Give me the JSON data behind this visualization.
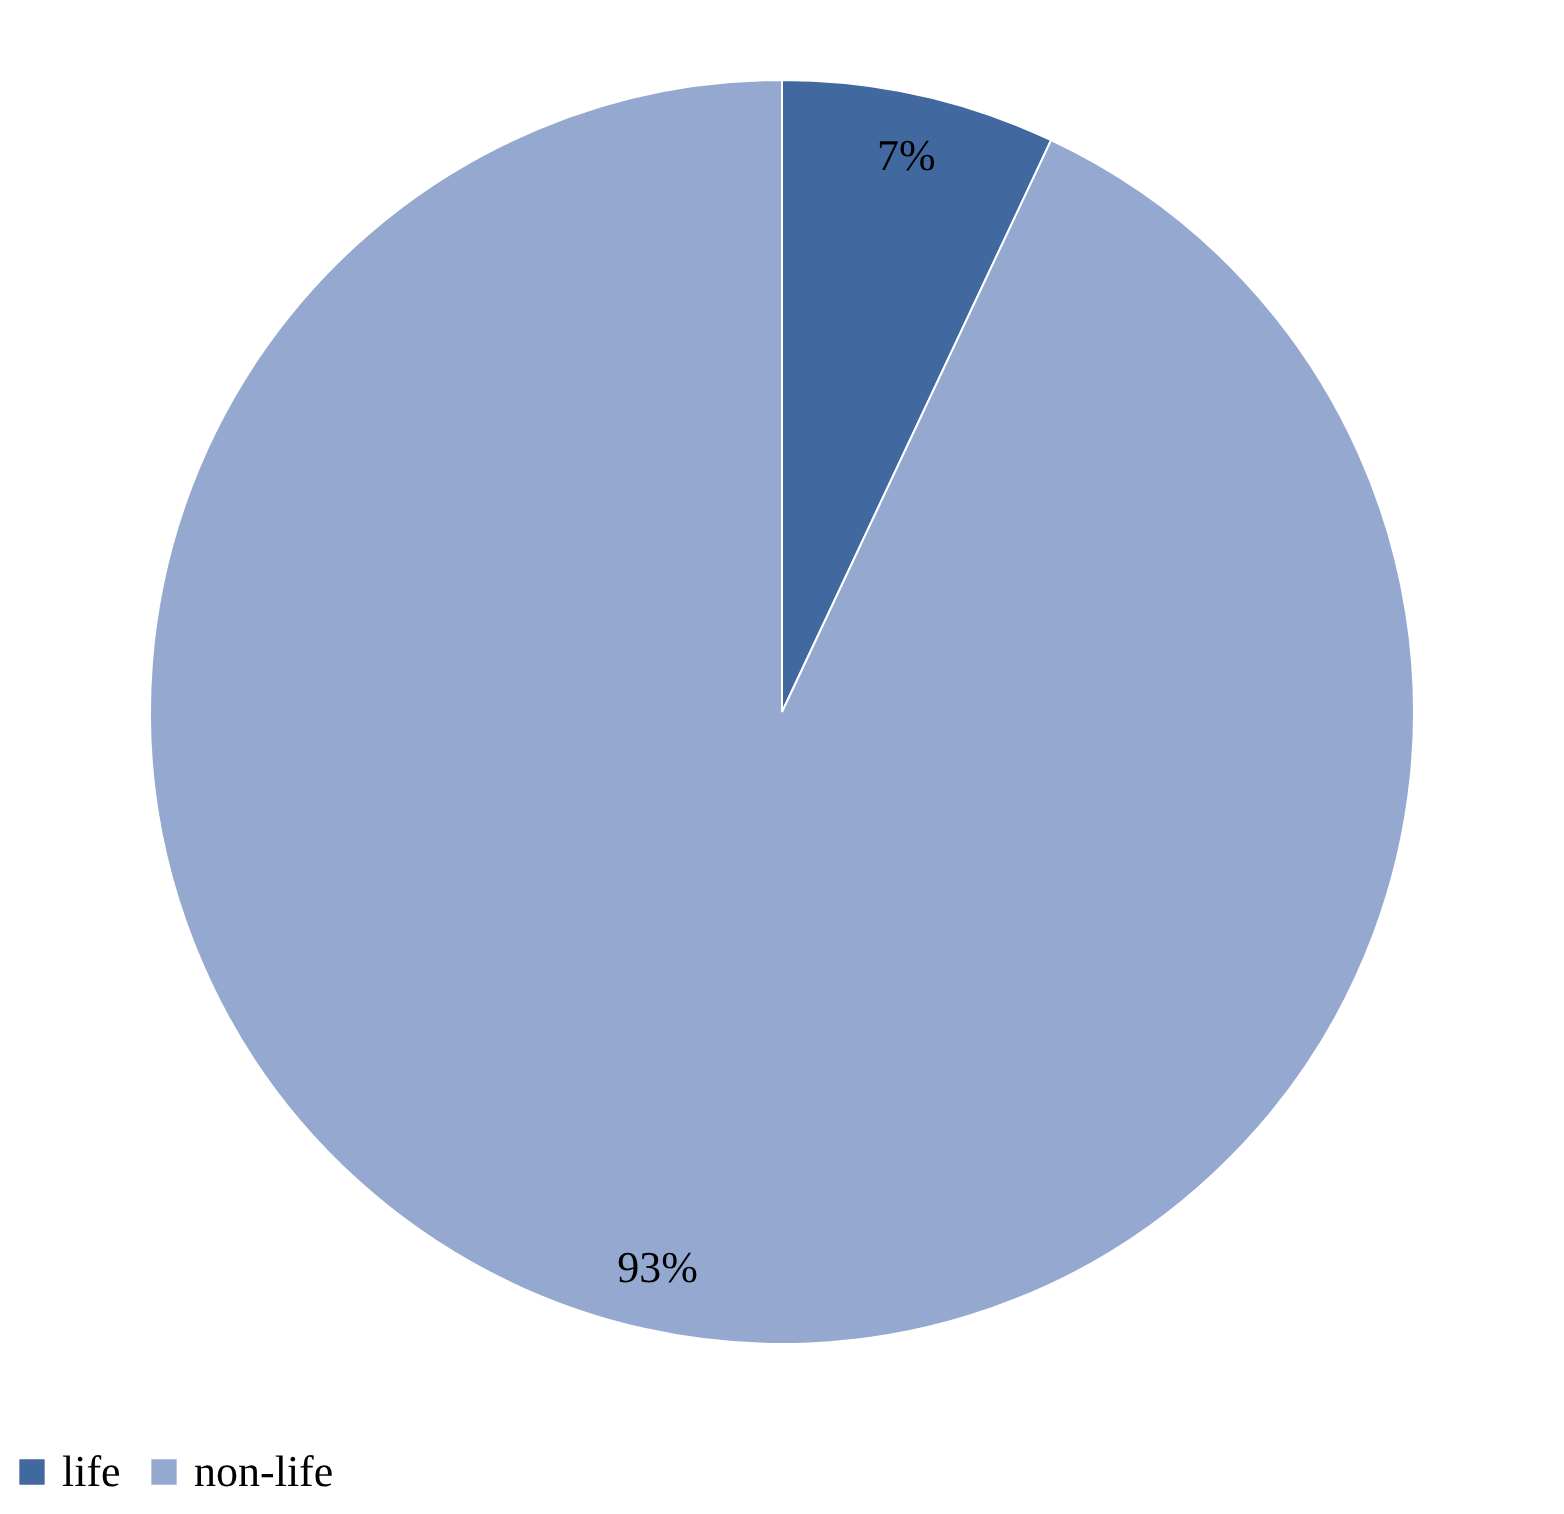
{
  "chart_data": {
    "type": "pie",
    "categories": [
      "life",
      "non-life"
    ],
    "values": [
      7,
      93
    ],
    "colors": [
      "#41699f",
      "#94a8d0"
    ],
    "value_labels": [
      "7%",
      "93%"
    ],
    "legend": "bottom"
  }
}
